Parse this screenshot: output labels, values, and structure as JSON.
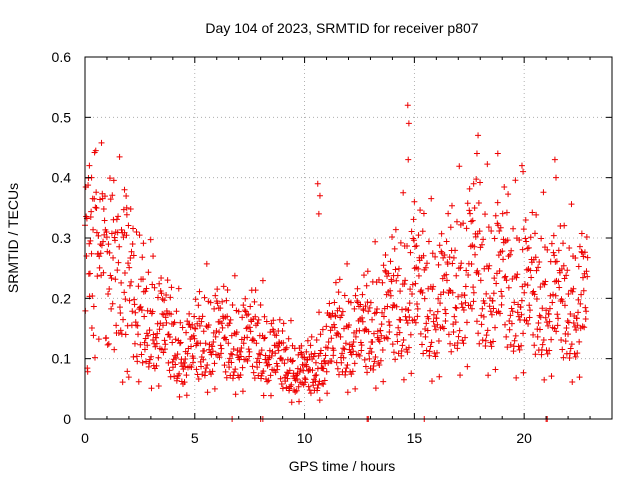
{
  "chart_data": {
    "type": "scatter",
    "title": "Day 104 of 2023, SRMTID for receiver p807",
    "xlabel": "GPS time / hours",
    "ylabel": "SRMTID / TECUs",
    "xlim": [
      0,
      24
    ],
    "ylim": [
      0,
      0.6
    ],
    "xticks": [
      0,
      5,
      10,
      15,
      20
    ],
    "xtick_labels": [
      "0",
      "5",
      "10",
      "15",
      "20"
    ],
    "yticks": [
      0,
      0.1,
      0.2,
      0.3,
      0.4,
      0.5,
      0.6
    ],
    "ytick_labels": [
      "0",
      "0.1",
      "0.2",
      "0.3",
      "0.4",
      "0.5",
      "0.6"
    ],
    "grid": true,
    "marker": "+",
    "color": "#ee0000",
    "series": [
      {
        "name": "SRMTID",
        "trend": [
          [
            0.0,
            0.22
          ],
          [
            0.5,
            0.25
          ],
          [
            1.0,
            0.22
          ],
          [
            1.5,
            0.24
          ],
          [
            2.0,
            0.22
          ],
          [
            2.5,
            0.17
          ],
          [
            3.0,
            0.15
          ],
          [
            3.5,
            0.14
          ],
          [
            4.0,
            0.12
          ],
          [
            4.5,
            0.1
          ],
          [
            5.0,
            0.11
          ],
          [
            5.5,
            0.13
          ],
          [
            6.0,
            0.13
          ],
          [
            6.5,
            0.12
          ],
          [
            7.0,
            0.12
          ],
          [
            7.5,
            0.12
          ],
          [
            8.0,
            0.12
          ],
          [
            8.5,
            0.1
          ],
          [
            9.0,
            0.09
          ],
          [
            9.5,
            0.08
          ],
          [
            10.0,
            0.07
          ],
          [
            10.5,
            0.08
          ],
          [
            11.0,
            0.11
          ],
          [
            11.5,
            0.13
          ],
          [
            12.0,
            0.13
          ],
          [
            12.5,
            0.13
          ],
          [
            13.0,
            0.14
          ],
          [
            13.5,
            0.16
          ],
          [
            14.0,
            0.17
          ],
          [
            14.5,
            0.19
          ],
          [
            15.0,
            0.2
          ],
          [
            15.5,
            0.19
          ],
          [
            16.0,
            0.18
          ],
          [
            16.5,
            0.19
          ],
          [
            17.0,
            0.21
          ],
          [
            17.5,
            0.23
          ],
          [
            18.0,
            0.22
          ],
          [
            18.5,
            0.21
          ],
          [
            19.0,
            0.22
          ],
          [
            19.5,
            0.2
          ],
          [
            20.0,
            0.2
          ],
          [
            20.5,
            0.19
          ],
          [
            21.0,
            0.19
          ],
          [
            21.5,
            0.18
          ],
          [
            22.0,
            0.18
          ],
          [
            22.5,
            0.18
          ],
          [
            23.0,
            0.2
          ]
        ],
        "outliers": [
          [
            0.2,
            0.42
          ],
          [
            0.3,
            0.4
          ],
          [
            1.8,
            0.38
          ],
          [
            1.9,
            0.35
          ],
          [
            3.1,
            0.27
          ],
          [
            10.6,
            0.39
          ],
          [
            10.7,
            0.37
          ],
          [
            10.65,
            0.34
          ],
          [
            14.7,
            0.52
          ],
          [
            14.75,
            0.49
          ],
          [
            14.72,
            0.43
          ],
          [
            17.9,
            0.47
          ],
          [
            17.85,
            0.44
          ],
          [
            18.8,
            0.44
          ],
          [
            19.9,
            0.42
          ],
          [
            19.95,
            0.41
          ],
          [
            21.4,
            0.43
          ],
          [
            21.45,
            0.4
          ],
          [
            17.7,
            0.39
          ],
          [
            15.0,
            0.36
          ]
        ],
        "zeros": [
          6.7,
          8.0,
          8.1,
          12.85,
          12.9,
          15.45,
          21.0,
          21.05
        ]
      }
    ]
  }
}
